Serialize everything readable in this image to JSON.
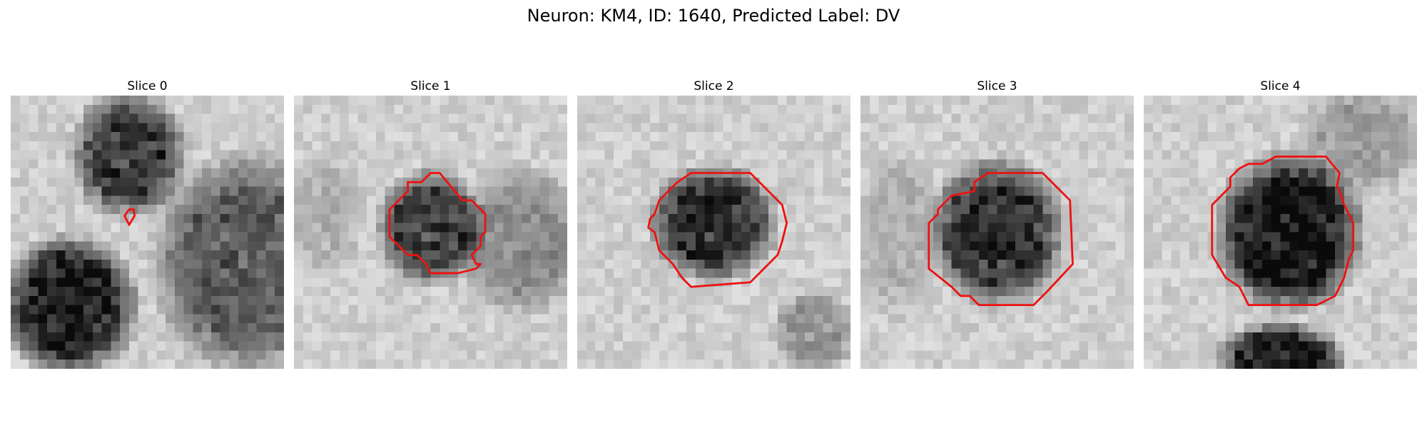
{
  "figure": {
    "title": "Neuron: KM4, ID: 1640, Predicted Label: DV"
  },
  "panels": [
    {
      "title": "Slice 0"
    },
    {
      "title": "Slice 1"
    },
    {
      "title": "Slice 2"
    },
    {
      "title": "Slice 3"
    },
    {
      "title": "Slice 4"
    }
  ],
  "colors": {
    "contour": "#ee1111",
    "background": "#ffffff"
  }
}
